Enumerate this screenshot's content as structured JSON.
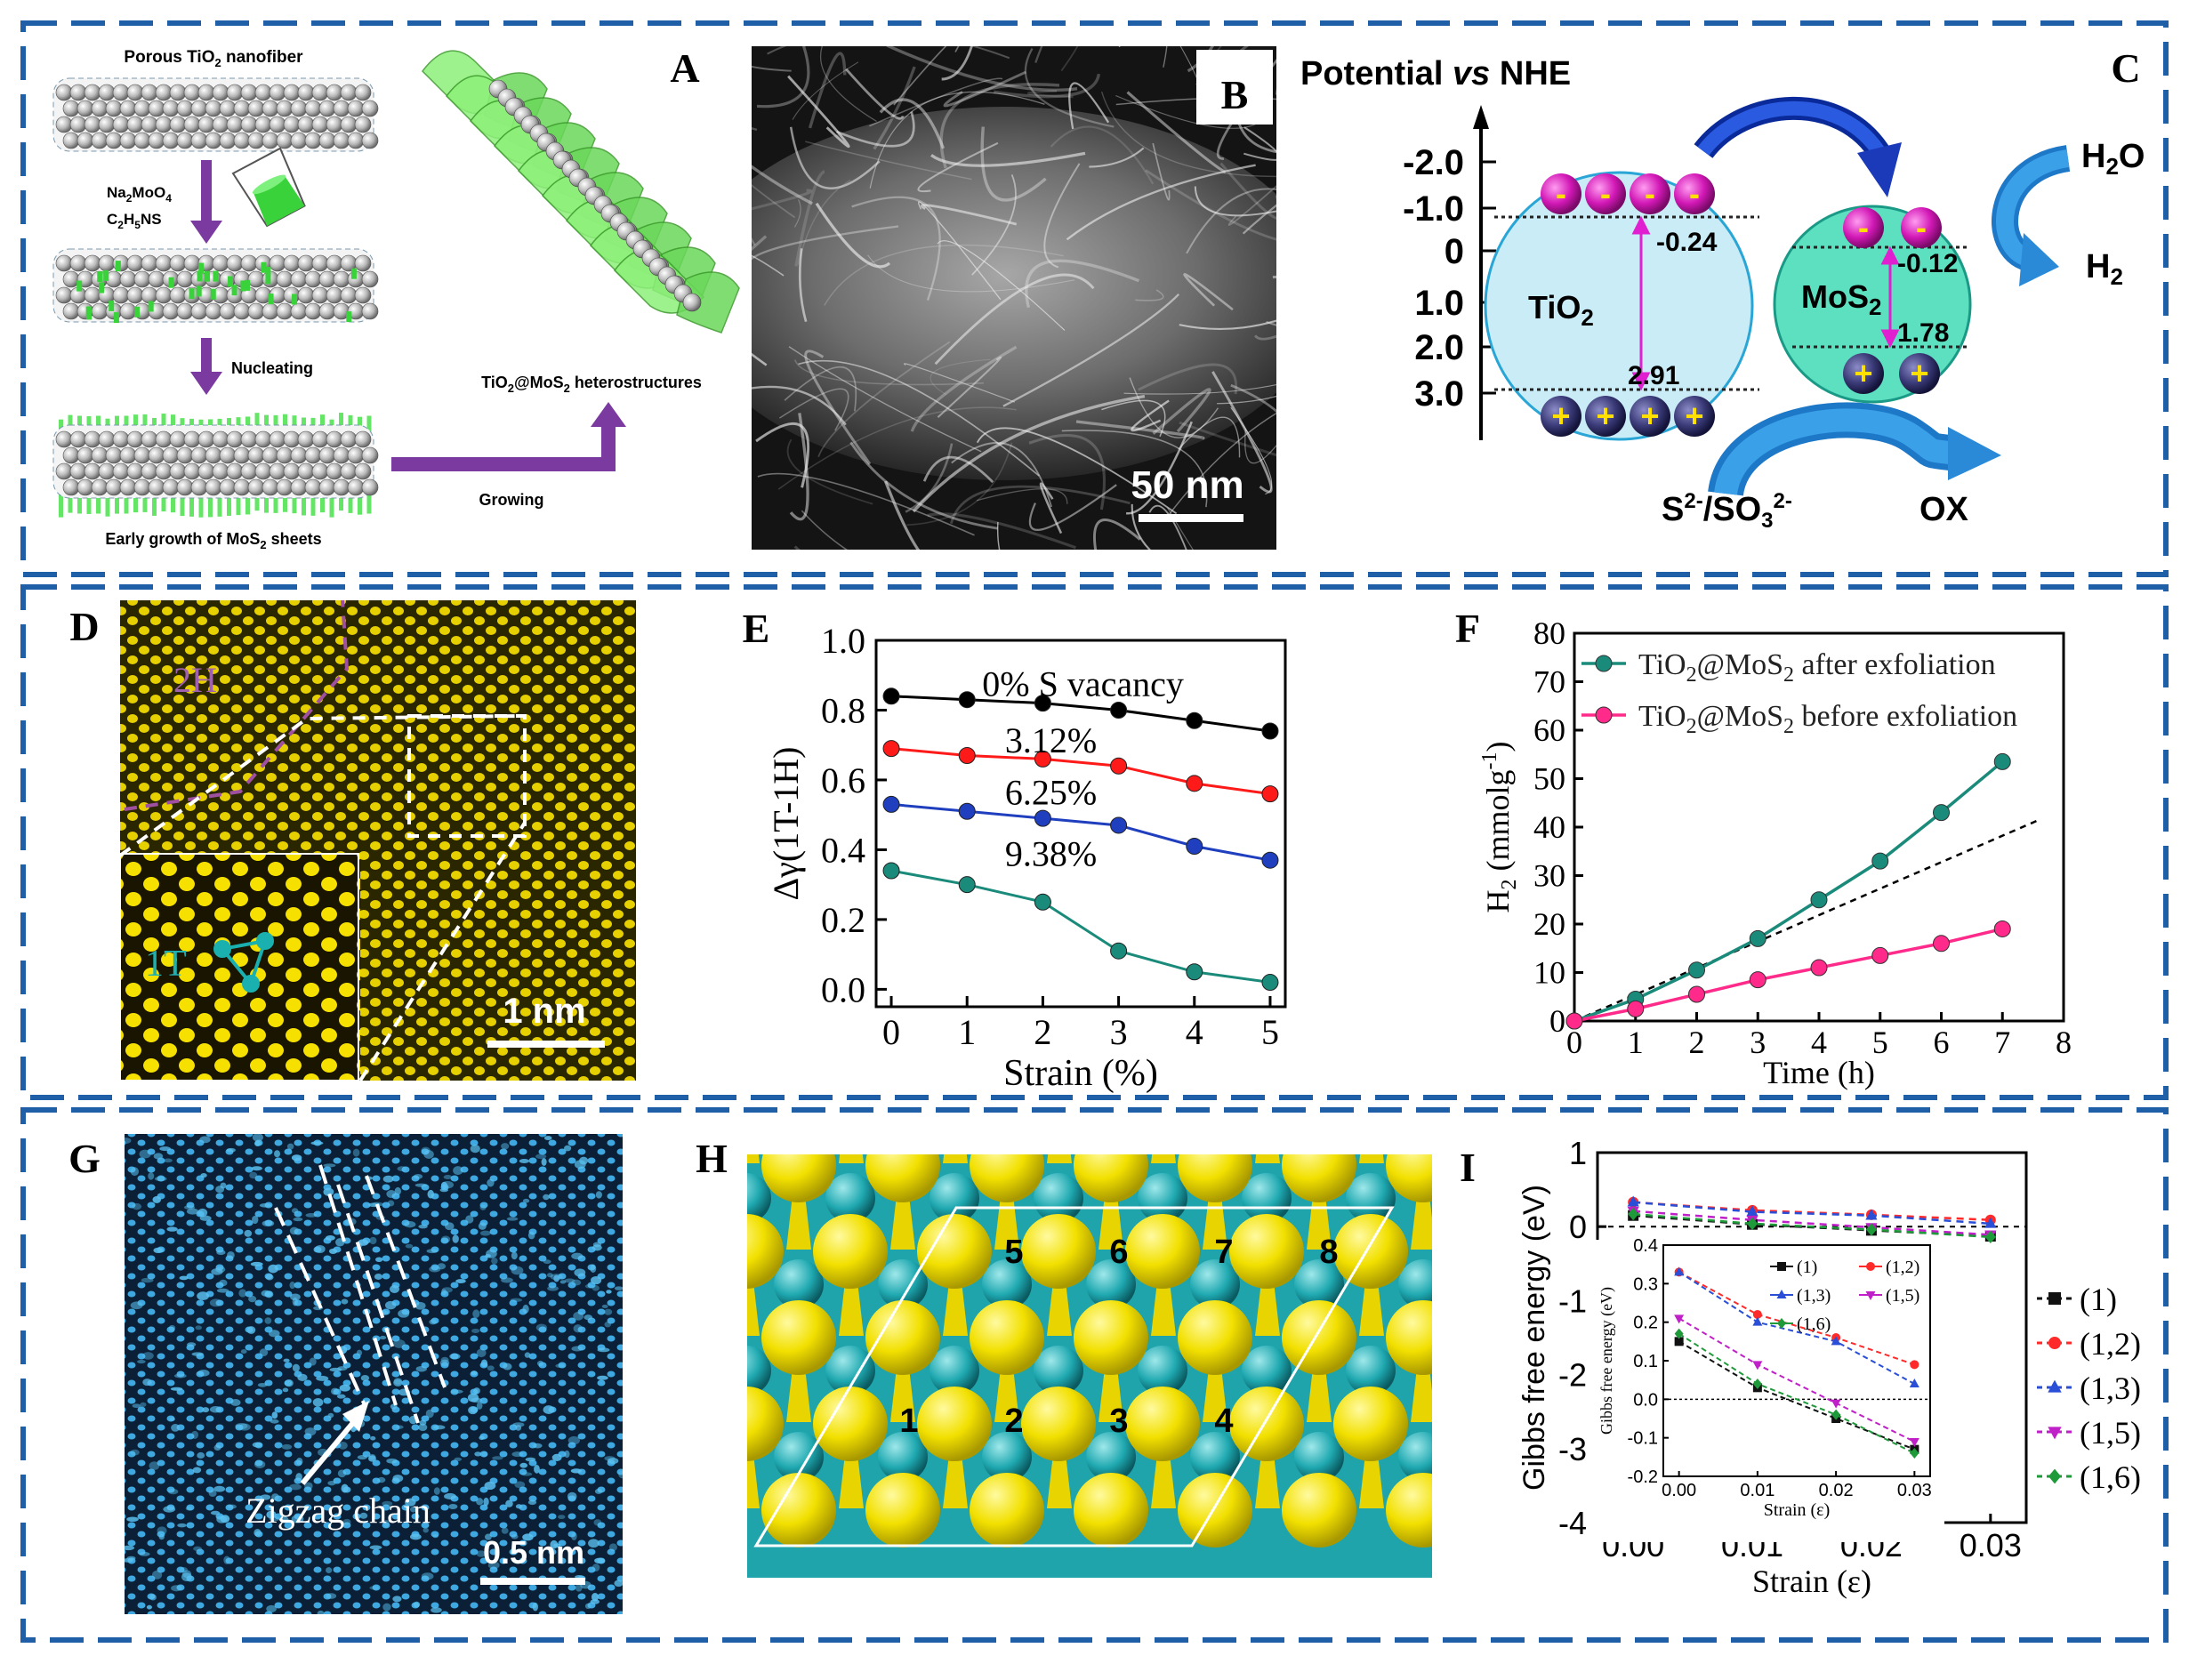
{
  "panels": {
    "A": {
      "letter": "A",
      "label_nanofiber": "Porous TiO",
      "label_nanofiber_sub": "2",
      "label_nanofiber_end": " nanofiber",
      "reagent1": "Na",
      "reagent1_sub": "2",
      "reagent1_mid": "MoO",
      "reagent1_sub2": "4",
      "reagent2": "C",
      "reagent2_sub": "2",
      "reagent2_mid": "H",
      "reagent2_sub2": "5",
      "reagent2_end": "NS",
      "step_nucleating": "Nucleating",
      "step_growing": "Growing",
      "label_early": "Early growth of MoS",
      "label_early_sub": "2",
      "label_early_end": " sheets",
      "label_hetero": "TiO",
      "label_hetero_sub": "2",
      "label_hetero_mid": "@MoS",
      "label_hetero_sub2": "2",
      "label_hetero_end": " heterostructures"
    },
    "B": {
      "letter": "B",
      "scale": "50 nm"
    },
    "C": {
      "letter": "C",
      "title_a": "Potential ",
      "title_vs": "vs",
      "title_b": " NHE",
      "axis_ticks": [
        "-2.0",
        "-1.0",
        "0",
        "1.0",
        "2.0",
        "3.0"
      ],
      "tio2": "TiO",
      "tio2_sub": "2",
      "mos2": "MoS",
      "mos2_sub": "2",
      "cb_tio2": "-0.24",
      "vb_tio2": "2.91",
      "cb_mos2": "-0.12",
      "vb_mos2": "1.78",
      "h2o": "H",
      "h2o_sub": "2",
      "h2o_end": "O",
      "h2": "H",
      "h2_sub": "2",
      "sacrificial_a": "S",
      "sacrificial_sup1": "2-",
      "sacrificial_b": "/SO",
      "sacrificial_sub": "3",
      "sacrificial_sup2": "2-",
      "ox": "OX",
      "minus": "-",
      "plus": "+"
    },
    "D": {
      "letter": "D",
      "label_2h": "2H",
      "label_1t": "1T",
      "scale": "1 nm"
    },
    "E": {
      "letter": "E"
    },
    "F": {
      "letter": "F"
    },
    "G": {
      "letter": "G",
      "annotation": "Zigzag chain",
      "scale": "0.5 nm"
    },
    "H": {
      "letter": "H",
      "sites": [
        "1",
        "2",
        "3",
        "4",
        "5",
        "6",
        "7",
        "8"
      ]
    },
    "I": {
      "letter": "I"
    }
  },
  "chart_data": [
    {
      "id": "E",
      "type": "line",
      "x": [
        0,
        1,
        2,
        3,
        4,
        5
      ],
      "xlabel": "Strain (%)",
      "ylabel": "Δγ(1T-1H)",
      "xlim": [
        -0.2,
        5.2
      ],
      "ylim": [
        -0.05,
        1.0
      ],
      "xticks": [
        "0",
        "1",
        "2",
        "3",
        "4",
        "5"
      ],
      "yticks": [
        "0.0",
        "0.2",
        "0.4",
        "0.6",
        "0.8",
        "1.0"
      ],
      "series": [
        {
          "name": "0% S vacancy",
          "color": "#000000",
          "values": [
            0.84,
            0.83,
            0.82,
            0.8,
            0.77,
            0.74
          ]
        },
        {
          "name": "3.12%",
          "color": "#ff1a1a",
          "values": [
            0.69,
            0.67,
            0.66,
            0.64,
            0.59,
            0.56
          ]
        },
        {
          "name": "6.25%",
          "color": "#1f3fbf",
          "values": [
            0.53,
            0.51,
            0.49,
            0.47,
            0.41,
            0.37
          ]
        },
        {
          "name": "9.38%",
          "color": "#1a8a7a",
          "values": [
            0.34,
            0.3,
            0.25,
            0.11,
            0.05,
            0.02
          ]
        }
      ]
    },
    {
      "id": "F",
      "type": "line",
      "x": [
        0,
        1,
        2,
        3,
        4,
        5,
        6,
        7
      ],
      "xlabel": "Time (h)",
      "ylabel_a": "H",
      "ylabel_sub": "2",
      "ylabel_b": " (mmolg",
      "ylabel_sup": "-1",
      "ylabel_c": ")",
      "xlim": [
        0,
        8
      ],
      "ylim": [
        0,
        80
      ],
      "xticks": [
        "0",
        "1",
        "2",
        "3",
        "4",
        "5",
        "6",
        "7",
        "8"
      ],
      "yticks": [
        "0",
        "10",
        "20",
        "30",
        "40",
        "50",
        "60",
        "70",
        "80"
      ],
      "series": [
        {
          "name_a": "TiO",
          "name_sub": "2",
          "name_b": "@MoS",
          "name_sub2": "2",
          "name_c": " after exfoliation",
          "color": "#1a8a7a",
          "values": [
            0,
            4.5,
            10.5,
            17,
            25,
            33,
            43,
            53.5
          ]
        },
        {
          "name_a": "TiO",
          "name_sub": "2",
          "name_b": "@MoS",
          "name_sub2": "2",
          "name_c": " before exfoliation",
          "color": "#ff2a8a",
          "values": [
            0,
            2.5,
            5.5,
            8.5,
            11,
            13.5,
            16,
            19
          ]
        }
      ],
      "dashed_fit": {
        "x": [
          0,
          7.6
        ],
        "y": [
          0,
          41.5
        ]
      }
    },
    {
      "id": "I",
      "type": "line",
      "x": [
        0.0,
        0.01,
        0.02,
        0.03
      ],
      "xlabel": "Strain (ε)",
      "ylabel": "Gibbs free energy (eV)",
      "xlim": [
        -0.003,
        0.033
      ],
      "ylim": [
        -4,
        1
      ],
      "xticks": [
        "0.00",
        "0.01",
        "0.02",
        "0.03"
      ],
      "yticks": [
        "-4",
        "-3",
        "-2",
        "-1",
        "0",
        "1"
      ],
      "legend": [
        "(1)",
        "(1,2)",
        "(1,3)",
        "(1,5)",
        "(1,6)"
      ],
      "series": [
        {
          "name": "(1)",
          "color": "#111111",
          "marker": "square",
          "values": [
            0.15,
            0.03,
            -0.05,
            -0.13
          ]
        },
        {
          "name": "(1,2)",
          "color": "#ff2a2a",
          "marker": "circle",
          "values": [
            0.33,
            0.22,
            0.16,
            0.09
          ]
        },
        {
          "name": "(1,3)",
          "color": "#2a4fd6",
          "marker": "triangle",
          "values": [
            0.33,
            0.2,
            0.15,
            0.04
          ]
        },
        {
          "name": "(1,5)",
          "color": "#c020c8",
          "marker": "triangle-down",
          "values": [
            0.21,
            0.09,
            -0.01,
            -0.11
          ]
        },
        {
          "name": "(1,6)",
          "color": "#1f9a3a",
          "marker": "diamond",
          "values": [
            0.17,
            0.04,
            -0.04,
            -0.14
          ]
        }
      ],
      "inset": {
        "xlabel": "Strain (ε)",
        "ylabel": "Gibbs free energy (eV)",
        "xlim": [
          -0.002,
          0.032
        ],
        "ylim": [
          -0.2,
          0.4
        ],
        "xticks": [
          "0.00",
          "0.01",
          "0.02",
          "0.03"
        ],
        "yticks": [
          "-0.2",
          "-0.1",
          "0.0",
          "0.1",
          "0.2",
          "0.3",
          "0.4"
        ]
      }
    }
  ]
}
